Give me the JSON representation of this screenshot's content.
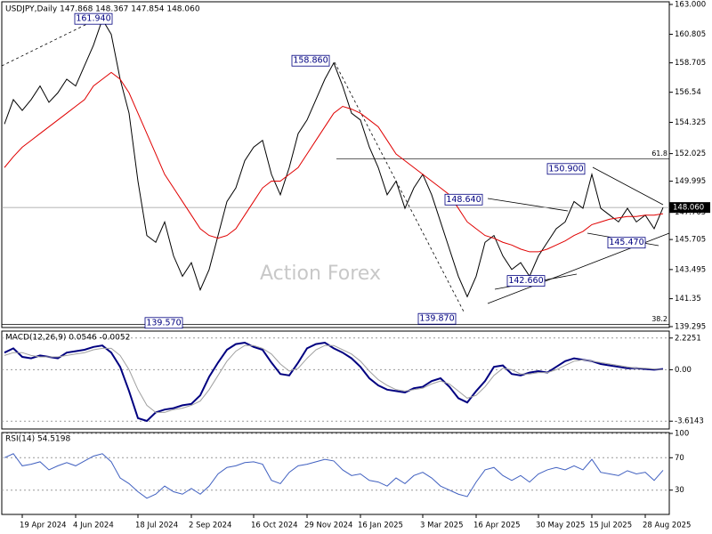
{
  "chart_data": [
    {
      "type": "line",
      "title": "USDJPY,Daily  147.868 148.367 147.854 148.060",
      "watermark": "Action Forex",
      "categories": [
        null,
        null,
        "19 Apr 2024",
        null,
        null,
        null,
        null,
        null,
        "4 Jun 2024",
        null,
        null,
        null,
        null,
        null,
        null,
        "18 Jul 2024",
        null,
        null,
        null,
        null,
        null,
        "2 Sep 2024",
        null,
        null,
        null,
        null,
        null,
        null,
        "16 Oct 2024",
        null,
        null,
        null,
        null,
        null,
        "29 Nov 2024",
        null,
        null,
        null,
        null,
        null,
        "16 Jan 2025",
        null,
        null,
        null,
        null,
        null,
        null,
        "3 Mar 2025",
        null,
        null,
        null,
        null,
        null,
        "16 Apr 2025",
        null,
        null,
        null,
        null,
        null,
        null,
        "30 May 2025",
        null,
        null,
        null,
        null,
        null,
        "15 Jul 2025",
        null,
        null,
        null,
        null,
        null,
        "28 Aug 2025",
        null,
        null
      ],
      "series": [
        {
          "color": "#000000",
          "values": [
            154.2,
            156.0,
            155.2,
            156.0,
            157.0,
            155.8,
            156.5,
            157.5,
            157.0,
            158.5,
            160.0,
            161.9,
            160.8,
            157.5,
            155.0,
            150.0,
            146.0,
            145.5,
            147.0,
            144.5,
            143.0,
            144.0,
            142.0,
            143.5,
            146.0,
            148.5,
            149.5,
            151.5,
            152.5,
            153.0,
            150.5,
            149.0,
            151.0,
            153.5,
            154.5,
            156.0,
            157.5,
            158.7,
            157.0,
            155.0,
            154.5,
            152.5,
            151.0,
            149.0,
            150.0,
            148.0,
            149.5,
            150.5,
            149.0,
            147.0,
            145.0,
            143.0,
            141.5,
            143.0,
            145.5,
            146.0,
            144.5,
            143.5,
            144.0,
            143.0,
            144.5,
            145.5,
            146.5,
            147.0,
            148.5,
            148.0,
            150.5,
            148.0,
            147.5,
            147.0,
            148.0,
            147.0,
            147.5,
            146.5,
            148.06
          ]
        },
        {
          "color": "#e00000",
          "values": [
            151,
            151.8,
            152.5,
            153,
            153.5,
            154,
            154.5,
            155,
            155.5,
            156,
            157,
            157.5,
            158,
            157.5,
            156.5,
            155,
            153.5,
            152,
            150.5,
            149.5,
            148.5,
            147.5,
            146.5,
            146,
            145.8,
            146,
            146.5,
            147.5,
            148.5,
            149.5,
            150,
            150,
            150.5,
            151,
            152,
            153,
            154,
            155,
            155.5,
            155.3,
            155,
            154.5,
            154,
            153,
            152,
            151.5,
            151,
            150.5,
            150,
            149.5,
            149,
            148,
            147,
            146.5,
            146,
            145.8,
            145.5,
            145.3,
            145,
            144.8,
            144.8,
            145,
            145.3,
            145.6,
            146,
            146.3,
            146.8,
            147,
            147.2,
            147.3,
            147.4,
            147.4,
            147.5,
            147.5,
            147.6
          ]
        }
      ],
      "ylim": [
        139.295,
        163.0
      ],
      "yticks": [
        {
          "value": 163.0,
          "label": "163.000"
        },
        160.805,
        158.705,
        156.54,
        154.325,
        152.025,
        149.995,
        147.705,
        145.705,
        143.495,
        141.35,
        139.295
      ],
      "annotations": [
        {
          "value": 161.94,
          "label": "161.940"
        },
        {
          "value": 158.86,
          "label": "158.860"
        },
        {
          "value": 139.57,
          "label": "139.570"
        },
        {
          "value": 139.87,
          "label": "139.870"
        },
        {
          "value": 148.64,
          "label": "148.640"
        },
        {
          "value": 142.66,
          "label": "142.660"
        },
        {
          "value": 150.9,
          "label": "150.900"
        },
        {
          "value": 145.47,
          "label": "145.470"
        }
      ],
      "levels": [
        {
          "value": 151.65,
          "label": "61.8"
        },
        {
          "value": 139.45,
          "label": "38.2"
        }
      ],
      "last": {
        "value": 148.06,
        "label": "148.060"
      }
    },
    {
      "type": "line",
      "title": "MACD(12,26,9) 0.0546 -0.0052",
      "series": [
        {
          "color": "#000080",
          "values": [
            1.2,
            1.5,
            0.9,
            0.8,
            1.0,
            0.9,
            0.8,
            1.2,
            1.3,
            1.4,
            1.6,
            1.7,
            1.2,
            0.2,
            -1.5,
            -3.4,
            -3.6,
            -3.0,
            -2.8,
            -2.7,
            -2.5,
            -2.4,
            -1.8,
            -0.5,
            0.5,
            1.4,
            1.8,
            1.9,
            1.6,
            1.4,
            0.5,
            -0.3,
            -0.4,
            0.5,
            1.5,
            1.8,
            1.9,
            1.5,
            1.2,
            0.8,
            0.2,
            -0.6,
            -1.1,
            -1.4,
            -1.5,
            -1.6,
            -1.3,
            -1.2,
            -0.8,
            -0.6,
            -1.2,
            -2.0,
            -2.3,
            -1.5,
            -0.8,
            0.2,
            0.3,
            -0.3,
            -0.4,
            -0.2,
            -0.1,
            -0.2,
            0.2,
            0.6,
            0.8,
            0.7,
            0.6,
            0.4,
            0.3,
            0.2,
            0.1,
            0.1,
            0.05,
            0.0,
            0.05
          ]
        },
        {
          "color": "#a0a0a0",
          "values": [
            1.0,
            1.2,
            1.2,
            1.0,
            0.9,
            0.9,
            0.9,
            1.0,
            1.1,
            1.2,
            1.4,
            1.5,
            1.5,
            1.0,
            0.0,
            -1.4,
            -2.5,
            -3.0,
            -3.0,
            -2.8,
            -2.7,
            -2.5,
            -2.2,
            -1.4,
            -0.4,
            0.6,
            1.3,
            1.7,
            1.7,
            1.5,
            1.1,
            0.4,
            -0.1,
            0.1,
            0.8,
            1.4,
            1.7,
            1.7,
            1.4,
            1.1,
            0.6,
            -0.1,
            -0.7,
            -1.1,
            -1.4,
            -1.5,
            -1.4,
            -1.3,
            -1.0,
            -0.8,
            -1.0,
            -1.5,
            -2.0,
            -1.8,
            -1.2,
            -0.4,
            0.1,
            0.0,
            -0.3,
            -0.3,
            -0.2,
            -0.2,
            0.0,
            0.3,
            0.6,
            0.7,
            0.6,
            0.5,
            0.4,
            0.3,
            0.2,
            0.1,
            0.1,
            0.05,
            0.0
          ]
        }
      ],
      "ylim": [
        -4.1,
        2.65
      ],
      "yticks": [
        2.2251,
        {
          "value": 0,
          "label": "0.00"
        },
        -3.6143
      ]
    },
    {
      "type": "line",
      "title": "RSI(14) 54.5198",
      "series": [
        {
          "color": "#4060c0",
          "values": [
            70,
            75,
            60,
            62,
            65,
            55,
            60,
            64,
            60,
            66,
            72,
            75,
            65,
            45,
            38,
            28,
            20,
            25,
            35,
            28,
            25,
            32,
            25,
            35,
            50,
            58,
            60,
            64,
            65,
            62,
            42,
            38,
            52,
            60,
            62,
            65,
            68,
            66,
            55,
            48,
            50,
            42,
            40,
            35,
            45,
            38,
            48,
            52,
            45,
            35,
            30,
            25,
            22,
            40,
            55,
            58,
            48,
            42,
            48,
            40,
            50,
            55,
            58,
            55,
            60,
            55,
            68,
            52,
            50,
            48,
            54,
            50,
            52,
            42,
            54.5
          ]
        }
      ],
      "ylim": [
        0,
        100
      ],
      "yticks": [
        100,
        70,
        30
      ]
    }
  ]
}
